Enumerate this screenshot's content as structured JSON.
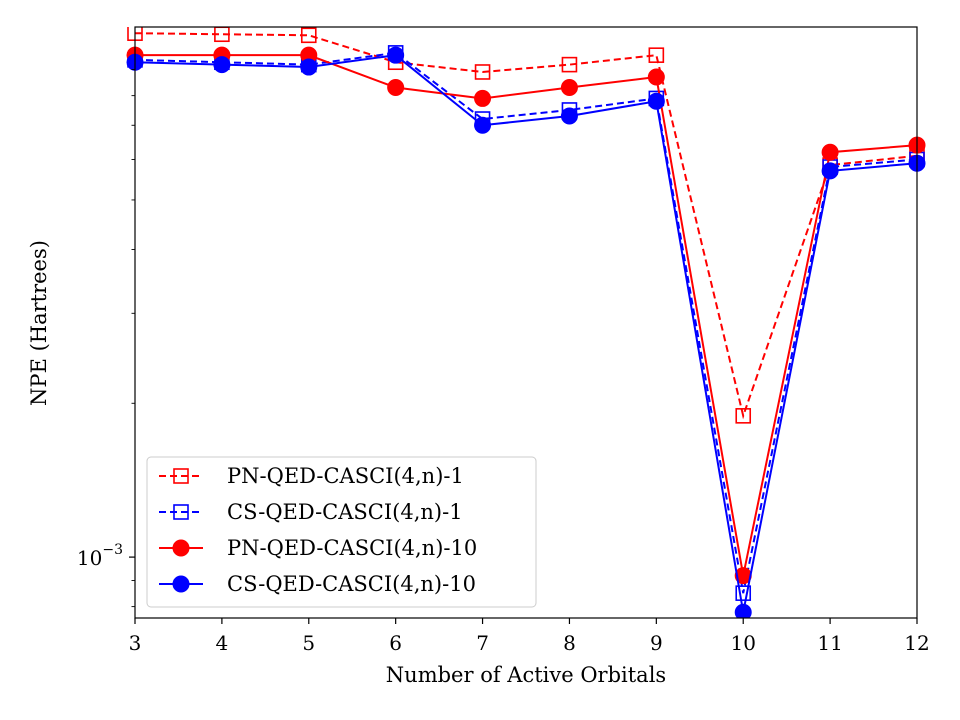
{
  "chart_data": {
    "type": "line",
    "xlabel": "Number of Active Orbitals",
    "ylabel": "NPE (Hartrees)",
    "ytick_label": {
      "base": "10",
      "exponent": "−3"
    },
    "yscale": "log",
    "xlim": [
      3,
      12
    ],
    "ylim": [
      0.00076,
      0.0109
    ],
    "x": [
      3,
      4,
      5,
      6,
      7,
      8,
      9,
      10,
      11,
      12
    ],
    "xticks": [
      "3",
      "4",
      "5",
      "6",
      "7",
      "8",
      "9",
      "10",
      "11",
      "12"
    ],
    "legend_location": "lower-left",
    "grid": false,
    "series": [
      {
        "name": "PN-QED-CASCI(4,n)-1",
        "color": "#ff0000",
        "linestyle": "dashed",
        "marker": "open-square",
        "values": [
          0.0106,
          0.01055,
          0.0105,
          0.0093,
          0.0089,
          0.0092,
          0.0096,
          0.00189,
          0.00585,
          0.0061
        ]
      },
      {
        "name": "CS-QED-CASCI(4,n)-1",
        "color": "#0000ff",
        "linestyle": "dashed",
        "marker": "open-square",
        "values": [
          0.0094,
          0.0093,
          0.0092,
          0.0097,
          0.0072,
          0.0075,
          0.0079,
          0.00085,
          0.0058,
          0.006
        ]
      },
      {
        "name": "PN-QED-CASCI(4,n)-10",
        "color": "#ff0000",
        "linestyle": "solid",
        "marker": "filled-circle",
        "values": [
          0.0096,
          0.0096,
          0.0096,
          0.0083,
          0.0079,
          0.0083,
          0.0087,
          0.00092,
          0.0062,
          0.0064
        ]
      },
      {
        "name": "CS-QED-CASCI(4,n)-10",
        "color": "#0000ff",
        "linestyle": "solid",
        "marker": "filled-circle",
        "values": [
          0.0093,
          0.0092,
          0.0091,
          0.0096,
          0.007,
          0.0073,
          0.0078,
          0.00078,
          0.0057,
          0.0059
        ]
      }
    ]
  }
}
